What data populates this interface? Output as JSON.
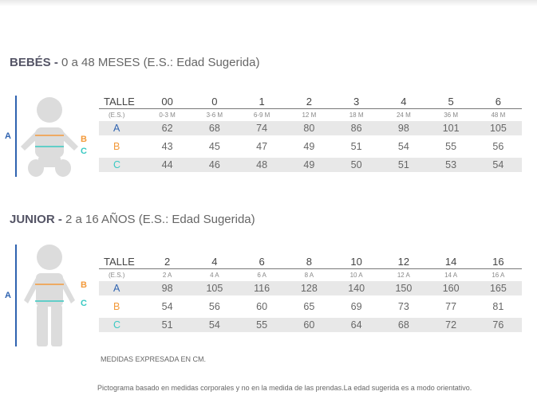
{
  "bebes": {
    "title_strong": "BEBÉS -",
    "title_rest": " 0 a 48 MESES (E.S.: Edad Sugerida)",
    "talle_label": "TALLE",
    "es_label": "(E.S.)",
    "sizes": [
      "00",
      "0",
      "1",
      "2",
      "3",
      "4",
      "5",
      "6"
    ],
    "ages": [
      "0-3 M",
      "3-6 M",
      "6-9 M",
      "12 M",
      "18 M",
      "24 M",
      "36 M",
      "48 M"
    ],
    "rows": [
      {
        "label": "A",
        "values": [
          "62",
          "68",
          "74",
          "80",
          "86",
          "98",
          "101",
          "105"
        ]
      },
      {
        "label": "B",
        "values": [
          "43",
          "45",
          "47",
          "49",
          "51",
          "54",
          "55",
          "56"
        ]
      },
      {
        "label": "C",
        "values": [
          "44",
          "46",
          "48",
          "49",
          "50",
          "51",
          "53",
          "54"
        ]
      }
    ],
    "fig_labels": {
      "a": "A",
      "b": "B",
      "c": "C"
    }
  },
  "junior": {
    "title_strong": "JUNIOR -",
    "title_rest": " 2 a 16 AÑOS (E.S.: Edad Sugerida)",
    "talle_label": "TALLE",
    "es_label": "(E.S.)",
    "sizes": [
      "2",
      "4",
      "6",
      "8",
      "10",
      "12",
      "14",
      "16"
    ],
    "ages": [
      "2 A",
      "4 A",
      "6 A",
      "8 A",
      "10 A",
      "12 A",
      "14 A",
      "16 A"
    ],
    "rows": [
      {
        "label": "A",
        "values": [
          "98",
          "105",
          "116",
          "128",
          "140",
          "150",
          "160",
          "165"
        ]
      },
      {
        "label": "B",
        "values": [
          "54",
          "56",
          "60",
          "65",
          "69",
          "73",
          "77",
          "81"
        ]
      },
      {
        "label": "C",
        "values": [
          "51",
          "54",
          "55",
          "60",
          "64",
          "68",
          "72",
          "76"
        ]
      }
    ],
    "fig_labels": {
      "a": "A",
      "b": "B",
      "c": "C"
    }
  },
  "notes": {
    "units": "MEDIDAS EXPRESADA EN CM.",
    "disclaimer": "Pictograma basado en medidas corporales y no en la medida de las prendas.La edad sugerida es a modo orientativo."
  },
  "colors": {
    "a": "#2f63b0",
    "b": "#f39a3b",
    "c": "#39c9c2",
    "figure": "#dcdcdc"
  }
}
